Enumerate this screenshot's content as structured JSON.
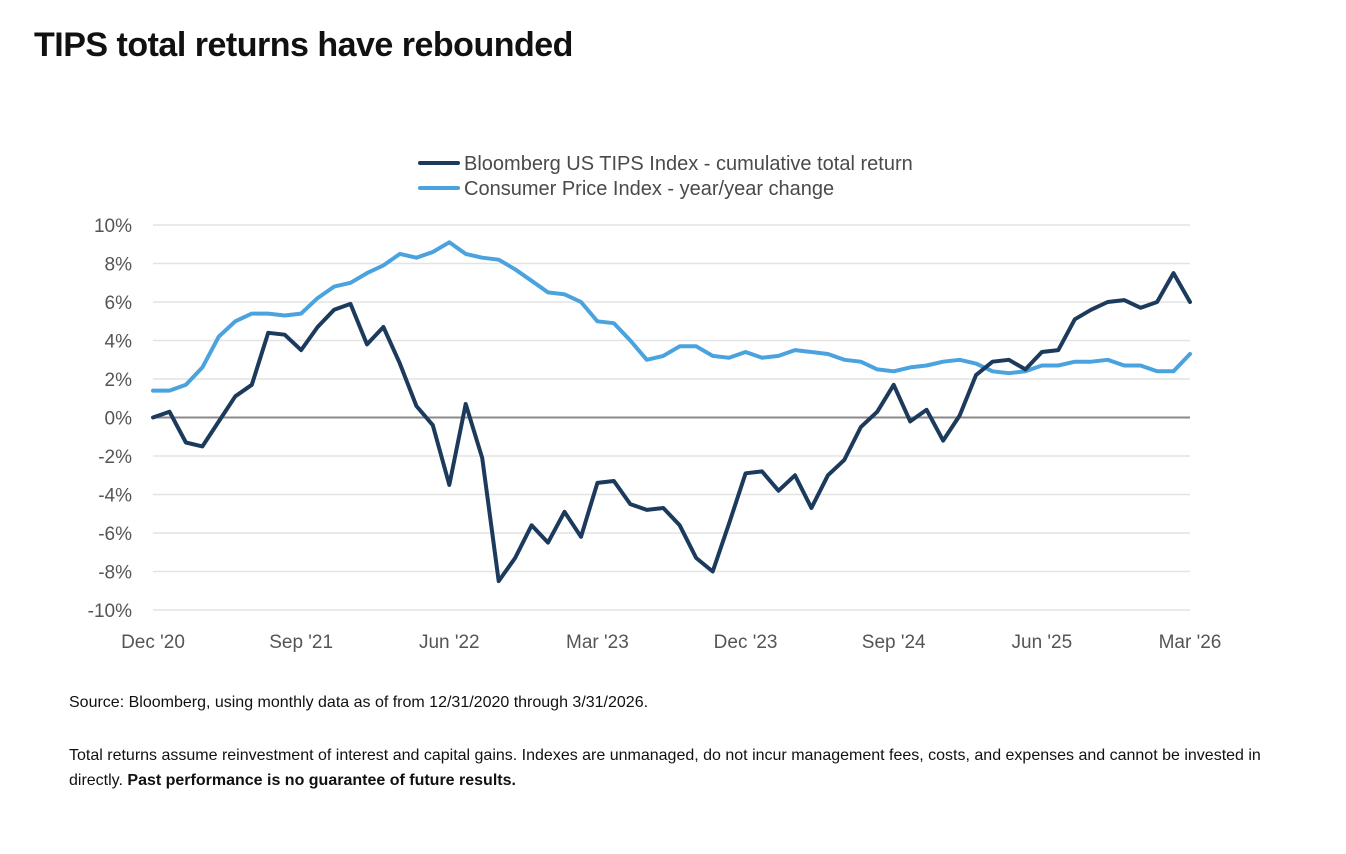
{
  "page": {
    "title": "TIPS total returns have rebounded",
    "source": "Source: Bloomberg, using monthly data as of from 12/31/2020 through 3/31/2026.",
    "disclaimer": "Total returns assume reinvestment of interest and capital gains. Indexes are unmanaged, do not incur management fees, costs, and expenses and cannot be invested in directly.",
    "disclaimer_bold": "Past performance is no guarantee of future results."
  },
  "colors": {
    "tips": "#1b3a5c",
    "cpi": "#4aa3df",
    "grid": "#e3e3e3",
    "zero_line": "#8a8a8a"
  },
  "chart_data": {
    "type": "line",
    "title": "",
    "xlabel": "",
    "ylabel": "",
    "ylim": [
      -10,
      10
    ],
    "y_ticks": [
      10,
      8,
      6,
      4,
      2,
      0,
      -2,
      -4,
      -6,
      -8,
      -10
    ],
    "y_tick_labels": [
      "10%",
      "8%",
      "6%",
      "4%",
      "2%",
      "0%",
      "-2%",
      "-4%",
      "-6%",
      "-8%",
      "-10%"
    ],
    "x_ticks": [
      {
        "label": "Dec '20",
        "date": "2020-12"
      },
      {
        "label": "Sep '21",
        "date": "2021-09"
      },
      {
        "label": "Jun '22",
        "date": "2022-06"
      },
      {
        "label": "Mar '23",
        "date": "2023-03"
      },
      {
        "label": "Dec '23",
        "date": "2023-12"
      },
      {
        "label": "Sep '24",
        "date": "2024-09"
      },
      {
        "label": "Jun '25",
        "date": "2025-06"
      },
      {
        "label": "Mar '26",
        "date": "2026-03"
      }
    ],
    "x": [
      "2020-12",
      "2021-01",
      "2021-02",
      "2021-03",
      "2021-04",
      "2021-05",
      "2021-06",
      "2021-07",
      "2021-08",
      "2021-09",
      "2021-10",
      "2021-11",
      "2021-12",
      "2022-01",
      "2022-02",
      "2022-03",
      "2022-04",
      "2022-05",
      "2022-06",
      "2022-07",
      "2022-08",
      "2022-09",
      "2022-10",
      "2022-11",
      "2022-12",
      "2023-01",
      "2023-02",
      "2023-03",
      "2023-04",
      "2023-05",
      "2023-06",
      "2023-07",
      "2023-08",
      "2023-09",
      "2023-10",
      "2023-11",
      "2023-12",
      "2024-01",
      "2024-02",
      "2024-03",
      "2024-04",
      "2024-05",
      "2024-06",
      "2024-07",
      "2024-08",
      "2024-09",
      "2024-10",
      "2024-11",
      "2024-12",
      "2025-01",
      "2025-02",
      "2025-03",
      "2025-04",
      "2025-05",
      "2025-06",
      "2025-07",
      "2025-08",
      "2025-09",
      "2025-10",
      "2025-11",
      "2025-12",
      "2026-01",
      "2026-02",
      "2026-03"
    ],
    "legend_position": "top-center",
    "grid": true,
    "series": [
      {
        "name": "Bloomberg US TIPS Index - cumulative total return",
        "values": [
          0.0,
          0.3,
          -1.3,
          -1.5,
          -0.2,
          1.1,
          1.7,
          4.4,
          4.3,
          3.5,
          4.7,
          5.6,
          5.9,
          3.8,
          4.7,
          2.8,
          0.6,
          -0.4,
          -3.5,
          0.7,
          -2.1,
          -8.5,
          -7.3,
          -5.6,
          -6.5,
          -4.9,
          -6.2,
          -3.4,
          -3.3,
          -4.5,
          -4.8,
          -4.7,
          -5.6,
          -7.3,
          -8.0,
          -5.5,
          -2.9,
          -2.8,
          -3.8,
          -3.0,
          -4.7,
          -3.0,
          -2.2,
          -0.5,
          0.3,
          1.7,
          -0.2,
          0.4,
          -1.2,
          0.1,
          2.2,
          2.9,
          3.0,
          2.5,
          3.4,
          3.5,
          5.1,
          5.6,
          6.0,
          6.1,
          5.7,
          6.0,
          7.5,
          6.0
        ]
      },
      {
        "name": "Consumer Price Index - year/year change",
        "values": [
          1.4,
          1.4,
          1.7,
          2.6,
          4.2,
          5.0,
          5.4,
          5.4,
          5.3,
          5.4,
          6.2,
          6.8,
          7.0,
          7.5,
          7.9,
          8.5,
          8.3,
          8.6,
          9.1,
          8.5,
          8.3,
          8.2,
          7.7,
          7.1,
          6.5,
          6.4,
          6.0,
          5.0,
          4.9,
          4.0,
          3.0,
          3.2,
          3.7,
          3.7,
          3.2,
          3.1,
          3.4,
          3.1,
          3.2,
          3.5,
          3.4,
          3.3,
          3.0,
          2.9,
          2.5,
          2.4,
          2.6,
          2.7,
          2.9,
          3.0,
          2.8,
          2.4,
          2.3,
          2.4,
          2.7,
          2.7,
          2.9,
          2.9,
          3.0,
          2.7,
          2.7,
          2.4,
          2.4,
          3.3
        ]
      }
    ]
  }
}
